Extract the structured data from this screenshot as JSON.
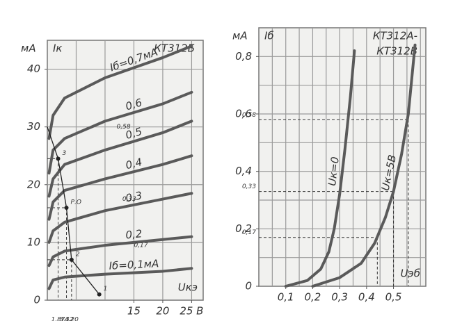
{
  "chart_data": [
    {
      "type": "line",
      "title_lines": [
        "КТ312Б"
      ],
      "y_unit": "мА",
      "y_label": "Iк",
      "x_label": "Uкэ",
      "xlim": [
        0,
        27
      ],
      "ylim": [
        0,
        45
      ],
      "xticks": [
        15,
        20,
        {
          "value": 25,
          "label": "25 В"
        }
      ],
      "yticks": [
        0,
        10,
        20,
        30,
        40
      ],
      "xgrid": [
        5,
        10,
        15,
        20,
        25
      ],
      "ygrid": [
        10,
        20,
        30,
        40
      ],
      "series": [
        {
          "name": "Iб=0,7мА",
          "x": [
            0.3,
            1,
            3,
            10,
            20,
            25
          ],
          "values": [
            28,
            32,
            35,
            38.5,
            42,
            44
          ]
        },
        {
          "name": "0,6",
          "x": [
            0.3,
            1,
            3,
            10,
            20,
            25
          ],
          "values": [
            22,
            26,
            28,
            31,
            34,
            36
          ]
        },
        {
          "name": "0,5",
          "x": [
            0.3,
            1,
            3,
            10,
            20,
            25
          ],
          "values": [
            18,
            21,
            23.5,
            26,
            29,
            31
          ]
        },
        {
          "name": "0,4",
          "x": [
            0.3,
            1,
            3,
            10,
            20,
            25
          ],
          "values": [
            14,
            17,
            19,
            21,
            23.5,
            25
          ]
        },
        {
          "name": "0,3",
          "x": [
            0.3,
            1,
            3,
            10,
            20,
            25
          ],
          "values": [
            10,
            12,
            13.5,
            15.5,
            17.5,
            18.5
          ]
        },
        {
          "name": "0,2",
          "x": [
            0.3,
            1,
            3,
            10,
            20,
            25
          ],
          "values": [
            6,
            7.5,
            8.5,
            9.5,
            10.5,
            11
          ]
        },
        {
          "name": "Iб=0,1мА",
          "x": [
            0.3,
            1,
            3,
            10,
            20,
            25
          ],
          "values": [
            2,
            3.5,
            4,
            4.5,
            5,
            5.5
          ]
        }
      ],
      "load_line": {
        "x": [
          0,
          1.87,
          3.32,
          4.2,
          9
        ],
        "values": [
          30,
          24.5,
          16,
          7,
          1
        ]
      },
      "points": [
        {
          "text": "3",
          "x": 1.87,
          "y": 24.5
        },
        {
          "text": "Р.О",
          "x": 3.32,
          "y": 16
        },
        {
          "text": "2",
          "x": 4.2,
          "y": 7
        },
        {
          "text": "1",
          "x": 9,
          "y": 1
        }
      ],
      "refs": [
        {
          "label": "1,87",
          "x": 1.87,
          "y": 24.5
        },
        {
          "label": "3,32",
          "x": 3.32,
          "y": 16
        },
        {
          "label": "4,20",
          "x": 4.2,
          "y": 7
        }
      ],
      "notes": [
        {
          "text": "0,58",
          "x": 12,
          "y": 30
        },
        {
          "text": "0,33",
          "x": 13,
          "y": 17.5
        },
        {
          "text": "0,17",
          "x": 15,
          "y": 9.5
        }
      ]
    },
    {
      "type": "line",
      "title_lines": [
        "КТ312А-",
        "КТ312В"
      ],
      "y_unit": "мА",
      "y_label": "Iб",
      "x_label": "Uэб",
      "xlim": [
        0,
        0.62
      ],
      "ylim": [
        0,
        0.9
      ],
      "xticks": [
        {
          "value": 0.1,
          "label": "0,1"
        },
        {
          "value": 0.2,
          "label": "0,2"
        },
        {
          "value": 0.3,
          "label": "0,3"
        },
        {
          "value": 0.4,
          "label": "0,4"
        },
        {
          "value": 0.5,
          "label": "0,5"
        }
      ],
      "yticks": [
        0,
        {
          "value": 0.2,
          "label": "0,2"
        },
        {
          "value": 0.4,
          "label": "0,4"
        },
        {
          "value": 0.6,
          "label": "0,6"
        },
        {
          "value": 0.8,
          "label": "0,8"
        }
      ],
      "xgrid": [
        0.05,
        0.1,
        0.15,
        0.2,
        0.25,
        0.3,
        0.35,
        0.4,
        0.45,
        0.5,
        0.55,
        0.6
      ],
      "ygrid": [
        0.1,
        0.2,
        0.3,
        0.4,
        0.5,
        0.6,
        0.7,
        0.8
      ],
      "series": [
        {
          "name": "Uк=0",
          "x": [
            0.1,
            0.18,
            0.23,
            0.26,
            0.28,
            0.3,
            0.32,
            0.34,
            0.355
          ],
          "values": [
            0,
            0.02,
            0.06,
            0.12,
            0.2,
            0.32,
            0.48,
            0.66,
            0.82
          ]
        },
        {
          "name": "Uк=5В",
          "x": [
            0.2,
            0.3,
            0.38,
            0.43,
            0.47,
            0.5,
            0.53,
            0.555,
            0.58
          ],
          "values": [
            0,
            0.03,
            0.08,
            0.15,
            0.24,
            0.33,
            0.46,
            0.6,
            0.84
          ]
        }
      ],
      "refs": [
        {
          "label": "0,58",
          "x": 0.555,
          "y": 0.58
        },
        {
          "label": "0,33",
          "x": 0.5,
          "y": 0.33
        },
        {
          "label": "0,17",
          "x": 0.44,
          "y": 0.17
        }
      ]
    }
  ]
}
